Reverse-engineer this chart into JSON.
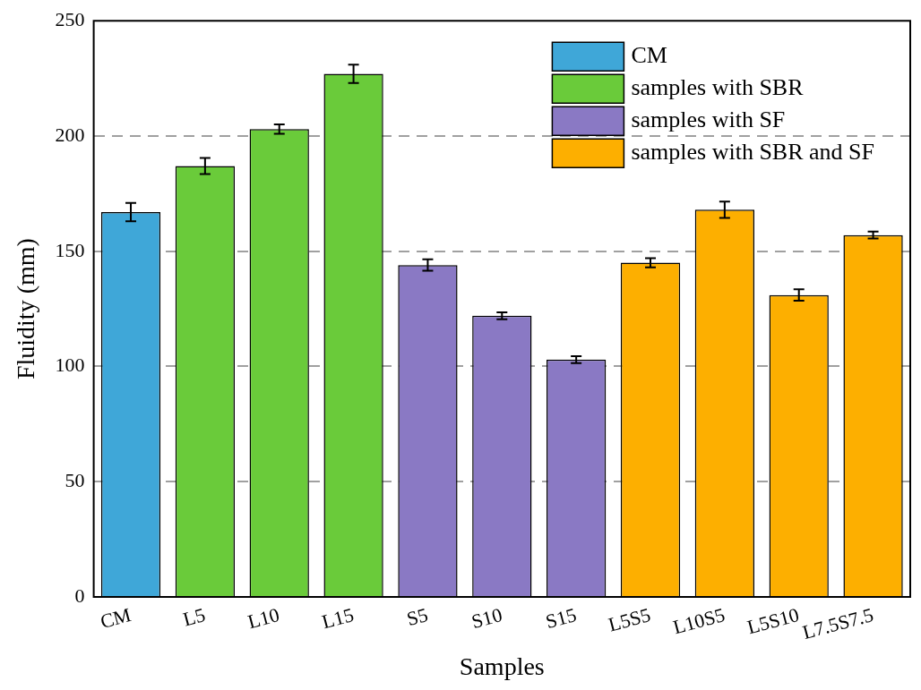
{
  "chart_data": {
    "type": "bar",
    "xlabel": "Samples",
    "ylabel": "Fluidity (mm)",
    "categories": [
      "CM",
      "L5",
      "L10",
      "L15",
      "S5",
      "S10",
      "S15",
      "L5S5",
      "L10S5",
      "L5S10",
      "L7.5S7.5"
    ],
    "series": [
      {
        "name": "CM",
        "color": "#3fa7d8",
        "values": [
          167,
          null,
          null,
          null,
          null,
          null,
          null,
          null,
          null,
          null,
          null
        ],
        "errors": [
          4,
          null,
          null,
          null,
          null,
          null,
          null,
          null,
          null,
          null,
          null
        ]
      },
      {
        "name": "samples with SBR",
        "color": "#6acb3a",
        "values": [
          null,
          187,
          203,
          227,
          null,
          null,
          null,
          null,
          null,
          null,
          null
        ],
        "errors": [
          null,
          3.5,
          2,
          4,
          null,
          null,
          null,
          null,
          null,
          null,
          null
        ]
      },
      {
        "name": "samples with SF",
        "color": "#8a79c4",
        "values": [
          null,
          null,
          null,
          null,
          144,
          122,
          103,
          null,
          null,
          null,
          null
        ],
        "errors": [
          null,
          null,
          null,
          null,
          2.5,
          1.5,
          1.5,
          null,
          null,
          null,
          null
        ]
      },
      {
        "name": "samples with SBR and SF",
        "color": "#fdaf00",
        "values": [
          null,
          null,
          null,
          null,
          null,
          null,
          null,
          145,
          168,
          131,
          157
        ],
        "errors": [
          null,
          null,
          null,
          null,
          null,
          null,
          null,
          2,
          3.5,
          2.5,
          1.5
        ]
      }
    ],
    "ylim": [
      0,
      250
    ],
    "yticks": [
      0,
      50,
      100,
      150,
      200,
      250
    ],
    "grid": "y",
    "legend": "top right"
  }
}
